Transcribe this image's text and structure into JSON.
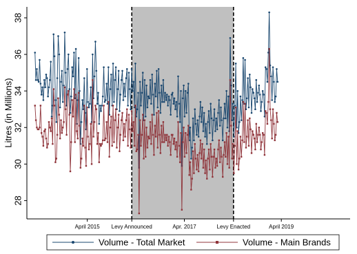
{
  "chart_data": {
    "type": "line",
    "ylabel": "Litres (in Millions)",
    "xlabel": "",
    "ylim": [
      27,
      38.6
    ],
    "yticks": [
      28,
      30,
      32,
      34,
      36,
      38
    ],
    "xrange": [
      "2014-01-01",
      "2020-08-31"
    ],
    "xticks": [
      {
        "date": "2015-04-01",
        "label": "April 2015"
      },
      {
        "date": "2016-03-01",
        "label": "Levy Announced"
      },
      {
        "date": "2017-04-01",
        "label": "Apr. 2017"
      },
      {
        "date": "2018-04-06",
        "label": "Levy Enacted"
      },
      {
        "date": "2019-04-01",
        "label": "April 2019"
      }
    ],
    "shaded_region": {
      "start": "2016-03-01",
      "end": "2018-04-06",
      "color": "#c0c0c0"
    },
    "vlines": [
      "2016-03-01",
      "2018-04-06"
    ],
    "frequency": "weekly",
    "start": "2014-03-03",
    "series": [
      {
        "name": "Volume - Total Market",
        "color": "#1a476f",
        "marker": "circle",
        "values": [
          36.1,
          34.6,
          35.2,
          34.6,
          34.5,
          35.7,
          34.4,
          33.8,
          34.2,
          33.5,
          34.6,
          34.2,
          34.9,
          34.7,
          33.7,
          34.2,
          34.6,
          35.6,
          32.6,
          33.2,
          37.1,
          35.9,
          33.5,
          32.3,
          34.7,
          37.0,
          36.0,
          33.1,
          34.5,
          35.1,
          33.4,
          34.3,
          37.2,
          35.0,
          33.2,
          35.2,
          36.0,
          34.1,
          32.8,
          33.7,
          35.3,
          34.8,
          36.1,
          33.6,
          36.3,
          32.2,
          33.5,
          35.8,
          34.0,
          31.1,
          32.3,
          33.5,
          33.0,
          34.7,
          32.8,
          31.9,
          35.2,
          33.4,
          33.1,
          33.3,
          34.2,
          32.3,
          36.0,
          33.6,
          34.8,
          36.7,
          35.1,
          33.3,
          33.9,
          32.2,
          33.2,
          32.9,
          33.2,
          33.7,
          35.3,
          33.4,
          33.5,
          34.4,
          33.3,
          35.3,
          32.7,
          34.1,
          34.9,
          33.2,
          35.5,
          33.4,
          34.6,
          35.3,
          33.0,
          34.1,
          35.1,
          32.9,
          33.8,
          34.6,
          35.1,
          33.5,
          34.4,
          33.7,
          34.7,
          35.2,
          33.2,
          35.0,
          34.1,
          33.0,
          35.2,
          34.0,
          34.5,
          33.1,
          35.5,
          32.6,
          33.0,
          33.9,
          29.8,
          34.5,
          33.2,
          33.9,
          35.0,
          32.4,
          34.6,
          32.6,
          34.3,
          33.1,
          33.7,
          33.6,
          34.6,
          33.3,
          34.9,
          33.8,
          32.7,
          34.4,
          33.7,
          35.1,
          33.1,
          35.2,
          33.9,
          32.8,
          34.3,
          33.4,
          34.6,
          33.4,
          33.9,
          33.5,
          33.8,
          33.2,
          33.7,
          33.5,
          32.7,
          33.8,
          33.9,
          33.3,
          33.6,
          33.0,
          33.4,
          32.6,
          34.8,
          33.3,
          32.3,
          34.0,
          29.9,
          33.6,
          34.3,
          32.6,
          34.0,
          32.8,
          33.9,
          34.4,
          31.3,
          32.0,
          30.3,
          30.9,
          32.5,
          31.3,
          33.0,
          32.2,
          31.6,
          32.4,
          31.5,
          32.6,
          33.4,
          32.3,
          33.1,
          31.8,
          32.8,
          31.5,
          32.2,
          31.1,
          32.3,
          32.9,
          31.7,
          33.3,
          32.5,
          31.3,
          32.4,
          33.0,
          31.8,
          32.5,
          31.9,
          32.8,
          33.5,
          32.1,
          33.1,
          32.4,
          31.3,
          32.5,
          33.3,
          32.5,
          34.0,
          32.0,
          33.7,
          31.8,
          36.9,
          34.3,
          32.4,
          33.3,
          31.5,
          33.2,
          35.5,
          32.0,
          34.0,
          31.7,
          32.3,
          33.7,
          32.4,
          33.5,
          35.8,
          33.3,
          35.7,
          33.0,
          33.6,
          34.7,
          33.1,
          34.9,
          34.2,
          32.8,
          34.1,
          33.9,
          33.6,
          33.0,
          34.6,
          33.4,
          33.9,
          34.3,
          33.8,
          32.9,
          33.4,
          34.0,
          33.8,
          32.6,
          35.3,
          35.2,
          34.5,
          36.1,
          38.3,
          35.4,
          34.8,
          33.5,
          35.3,
          34.5,
          33.4,
          33.7,
          35.2,
          34.5
        ]
      },
      {
        "name": "Volume - Main Brands",
        "color": "#90353b",
        "marker": "square",
        "values": [
          33.2,
          32.4,
          32.0,
          31.9,
          31.9,
          32.0,
          33.2,
          31.7,
          31.5,
          31.0,
          31.8,
          31.9,
          31.4,
          30.9,
          31.1,
          32.3,
          32.0,
          31.8,
          32.5,
          31.1,
          34.1,
          33.2,
          30.1,
          30.3,
          31.6,
          33.6,
          32.7,
          31.4,
          32.4,
          31.7,
          32.0,
          32.3,
          34.2,
          33.0,
          31.6,
          33.8,
          34.0,
          32.7,
          29.6,
          31.2,
          33.5,
          32.6,
          34.1,
          31.2,
          33.8,
          31.8,
          31.4,
          33.9,
          32.1,
          29.8,
          30.3,
          31.4,
          31.0,
          33.2,
          30.9,
          29.9,
          33.1,
          31.5,
          30.8,
          31.1,
          32.2,
          30.0,
          34.6,
          31.5,
          32.3,
          33.2,
          33.0,
          31.1,
          31.7,
          30.1,
          31.1,
          31.0,
          31.1,
          31.3,
          33.2,
          31.3,
          31.4,
          32.3,
          31.2,
          33.4,
          30.4,
          32.0,
          32.6,
          31.0,
          33.2,
          31.2,
          32.4,
          33.0,
          30.9,
          32.0,
          32.7,
          30.7,
          31.6,
          32.4,
          32.8,
          31.3,
          32.2,
          31.5,
          32.4,
          33.0,
          31.0,
          32.7,
          31.9,
          30.9,
          32.9,
          31.8,
          32.3,
          31.0,
          33.2,
          30.7,
          30.8,
          31.6,
          27.3,
          32.4,
          31.0,
          31.6,
          32.7,
          30.3,
          32.4,
          30.4,
          32.0,
          30.9,
          31.5,
          31.4,
          32.3,
          31.1,
          32.7,
          31.6,
          30.5,
          32.1,
          31.5,
          32.8,
          30.9,
          32.9,
          31.6,
          30.6,
          32.1,
          31.2,
          32.3,
          31.2,
          31.6,
          31.3,
          31.6,
          31.0,
          31.5,
          31.2,
          30.5,
          31.6,
          31.6,
          31.1,
          31.4,
          30.8,
          31.2,
          30.4,
          32.3,
          31.0,
          30.1,
          31.7,
          27.5,
          31.2,
          32.0,
          30.4,
          31.7,
          30.6,
          31.6,
          32.1,
          29.4,
          30.1,
          28.6,
          29.2,
          30.7,
          29.5,
          31.1,
          30.3,
          29.7,
          30.5,
          29.6,
          30.6,
          31.3,
          30.3,
          31.1,
          29.8,
          30.8,
          29.5,
          30.2,
          29.2,
          30.3,
          30.8,
          29.7,
          31.1,
          30.4,
          29.3,
          30.4,
          30.8,
          29.8,
          30.3,
          29.9,
          30.8,
          31.3,
          30.1,
          30.9,
          30.4,
          29.3,
          30.5,
          31.2,
          30.4,
          31.7,
          30.0,
          31.5,
          29.8,
          34.6,
          32.1,
          30.3,
          31.1,
          29.5,
          31.0,
          33.1,
          30.0,
          31.8,
          29.7,
          30.3,
          31.5,
          30.4,
          31.3,
          33.4,
          31.2,
          33.3,
          30.9,
          31.5,
          32.4,
          31.0,
          32.5,
          31.9,
          30.6,
          31.8,
          31.6,
          31.4,
          30.8,
          32.2,
          31.2,
          31.6,
          32.0,
          31.6,
          30.8,
          31.2,
          31.7,
          31.6,
          30.5,
          32.9,
          32.8,
          32.2,
          33.4,
          36.3,
          33.0,
          32.4,
          31.4,
          33.0,
          32.2,
          31.3,
          31.6,
          32.8,
          32.3
        ]
      }
    ]
  }
}
